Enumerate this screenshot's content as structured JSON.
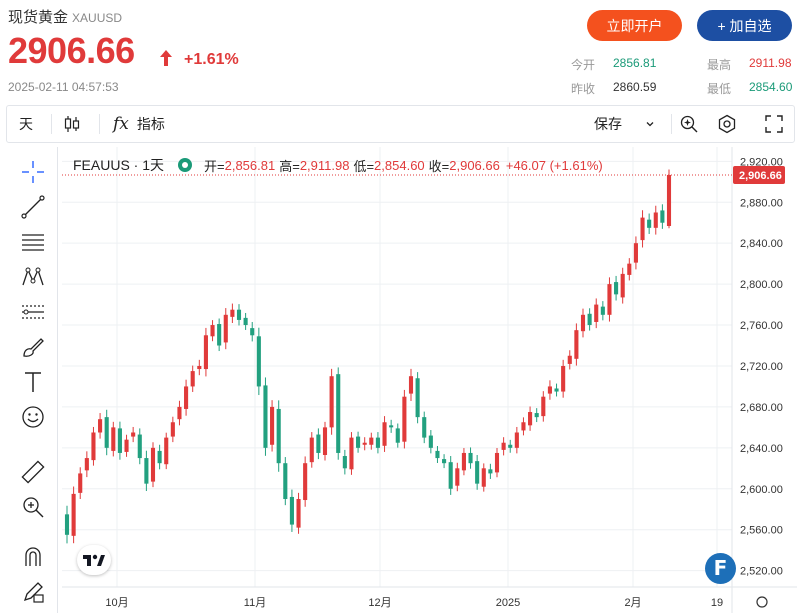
{
  "header": {
    "title": "现货黄金",
    "symbol": "XAUUSD",
    "price": "2906.66",
    "change_pct": "+1.61%",
    "timestamp": "2025-02-11 04:57:53",
    "open_account_label": "立即开户",
    "watchlist_label": "+ 加自选"
  },
  "stats": {
    "open_label": "今开",
    "open_value": "2856.81",
    "high_label": "最高",
    "high_value": "2911.98",
    "prev_close_label": "昨收",
    "prev_close_value": "2860.59",
    "low_label": "最低",
    "low_value": "2854.60"
  },
  "toolbar": {
    "interval": "天",
    "indicators_label": "指标",
    "save_label": "保存"
  },
  "left_tools": [
    "crosshair-icon",
    "trendline-icon",
    "fib-icon",
    "pattern-icon",
    "projection-icon",
    "brush-icon",
    "text-icon",
    "emoji-icon",
    "ruler-icon",
    "zoom-icon",
    "magnet-icon",
    "lock-icon"
  ],
  "legend": {
    "name": "FEAUUS · 1天",
    "open_label": "开=",
    "open": "2,856.81",
    "high_label": "高=",
    "high": "2,911.98",
    "low_label": "低=",
    "low": "2,854.60",
    "close_label": "收=",
    "close": "2,906.66",
    "change": "+46.07 (+1.61%)"
  },
  "colors": {
    "up": "#e03a3a",
    "down": "#22a07f",
    "accent": "#f4511e",
    "brand": "#1d4fa3"
  },
  "chart_data": {
    "type": "candlestick",
    "y_ticks": [
      "2,920.00",
      "2,880.00",
      "2,840.00",
      "2,800.00",
      "2,760.00",
      "2,720.00",
      "2,680.00",
      "2,640.00",
      "2,600.00",
      "2,560.00",
      "2,520.00"
    ],
    "y_tick_values": [
      2920,
      2880,
      2840,
      2800,
      2760,
      2720,
      2680,
      2640,
      2600,
      2560,
      2520
    ],
    "x_labels": [
      "10月",
      "11月",
      "12月",
      "2025",
      "2月",
      "19"
    ],
    "last_price_label": "2,906.66",
    "last_price": 2906.66,
    "ylim": [
      2504,
      2934
    ],
    "close_path": [
      2555,
      2595,
      2615,
      2630,
      2655,
      2668,
      2640,
      2660,
      2635,
      2648,
      2655,
      2630,
      2605,
      2640,
      2625,
      2650,
      2665,
      2680,
      2700,
      2715,
      2720,
      2750,
      2760,
      2740,
      2770,
      2775,
      2765,
      2760,
      2750,
      2700,
      2640,
      2680,
      2625,
      2590,
      2565,
      2590,
      2625,
      2650,
      2635,
      2660,
      2710,
      2635,
      2620,
      2650,
      2640,
      2645,
      2650,
      2640,
      2665,
      2660,
      2645,
      2690,
      2710,
      2670,
      2650,
      2640,
      2630,
      2625,
      2600,
      2620,
      2635,
      2625,
      2605,
      2620,
      2615,
      2635,
      2645,
      2640,
      2655,
      2665,
      2675,
      2670,
      2690,
      2700,
      2695,
      2720,
      2730,
      2755,
      2770,
      2760,
      2780,
      2770,
      2800,
      2790,
      2810,
      2820,
      2840,
      2865,
      2855,
      2870,
      2860,
      2906.66
    ],
    "volatility": [
      14,
      12,
      10,
      11,
      9,
      10,
      12,
      9,
      11,
      8,
      9,
      10,
      12,
      9,
      10,
      8,
      9,
      10,
      11,
      9,
      10,
      12,
      8,
      9,
      11,
      10,
      9,
      8,
      10,
      14,
      13,
      11,
      14,
      10,
      12,
      10,
      11,
      9,
      10,
      9,
      12,
      11,
      10,
      9,
      8,
      9,
      8,
      9,
      10,
      9,
      8,
      11,
      12,
      10,
      9,
      9,
      8,
      8,
      10,
      9,
      8,
      9,
      10,
      8,
      9,
      8,
      9,
      8,
      9,
      8,
      9,
      8,
      9,
      10,
      8,
      10,
      9,
      11,
      10,
      9,
      10,
      9,
      11,
      10,
      10,
      9,
      11,
      12,
      10,
      11,
      10,
      8
    ]
  }
}
